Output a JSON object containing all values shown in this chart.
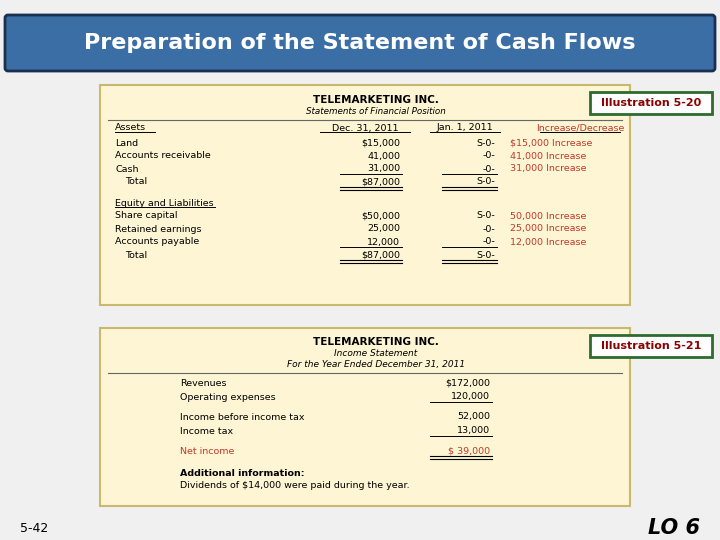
{
  "title": "Preparation of the Statement of Cash Flows",
  "title_bg": "#3a6ea5",
  "title_color": "#ffffff",
  "slide_bg": "#f0f0f0",
  "table_bg": "#fdf5d3",
  "table_border": "#c8b96e",
  "illus_label_color": "#8b0000",
  "illus_border_color": "#2e6b2e",
  "illus_bg": "#ffffff",
  "footer_left": "5-42",
  "footer_right": "LO 6",
  "t1_company": "TELEMARKETING INC.",
  "t1_subtitle": "Statements of Financial Position",
  "t1_col1": "Dec. 31, 2011",
  "t1_col2": "Jan. 1, 2011",
  "t1_col3": "Increase/Decrease",
  "t1_assets_label": "Assets",
  "t1_rows_left": [
    "Land",
    "Accounts receivable",
    "Cash",
    "   Total"
  ],
  "t1_rows_mid": [
    "$15,000",
    "41,000",
    "31,000",
    "$87,000"
  ],
  "t1_rows_mid2": [
    "S-0-",
    "-0-",
    "-0-",
    "S-0-"
  ],
  "t1_rows_right": [
    "$15,000 Increase",
    "41,000 Increase",
    "31,000 Increase",
    ""
  ],
  "t1_eq_label": "Equity and Liabilities",
  "t1_eq_left": [
    "Share capital",
    "Retained earnings",
    "Accounts payable",
    "   Total"
  ],
  "t1_eq_mid": [
    "$50,000",
    "25,000",
    "12,000",
    "$87,000"
  ],
  "t1_eq_mid2": [
    "S-0-",
    "-0-",
    "-0-",
    "S-0-"
  ],
  "t1_eq_right": [
    "50,000 Increase",
    "25,000 Increase",
    "12,000 Increase",
    ""
  ],
  "t2_company": "TELEMARKETING INC.",
  "t2_sub1": "Income Statement",
  "t2_sub2": "For the Year Ended December 31, 2011",
  "t2_rows_left": [
    "Revenues",
    "Operating expenses",
    "Income before income tax",
    "Income tax",
    "Net income"
  ],
  "t2_rows_right": [
    "$172,000",
    "120,000",
    "52,000",
    "13,000",
    "$ 39,000"
  ],
  "t2_additional": "Additional information:",
  "t2_dividends": "Dividends of $14,000 were paid during the year.",
  "red_color": "#c0392b",
  "black": "#000000",
  "dark_gray": "#333333"
}
